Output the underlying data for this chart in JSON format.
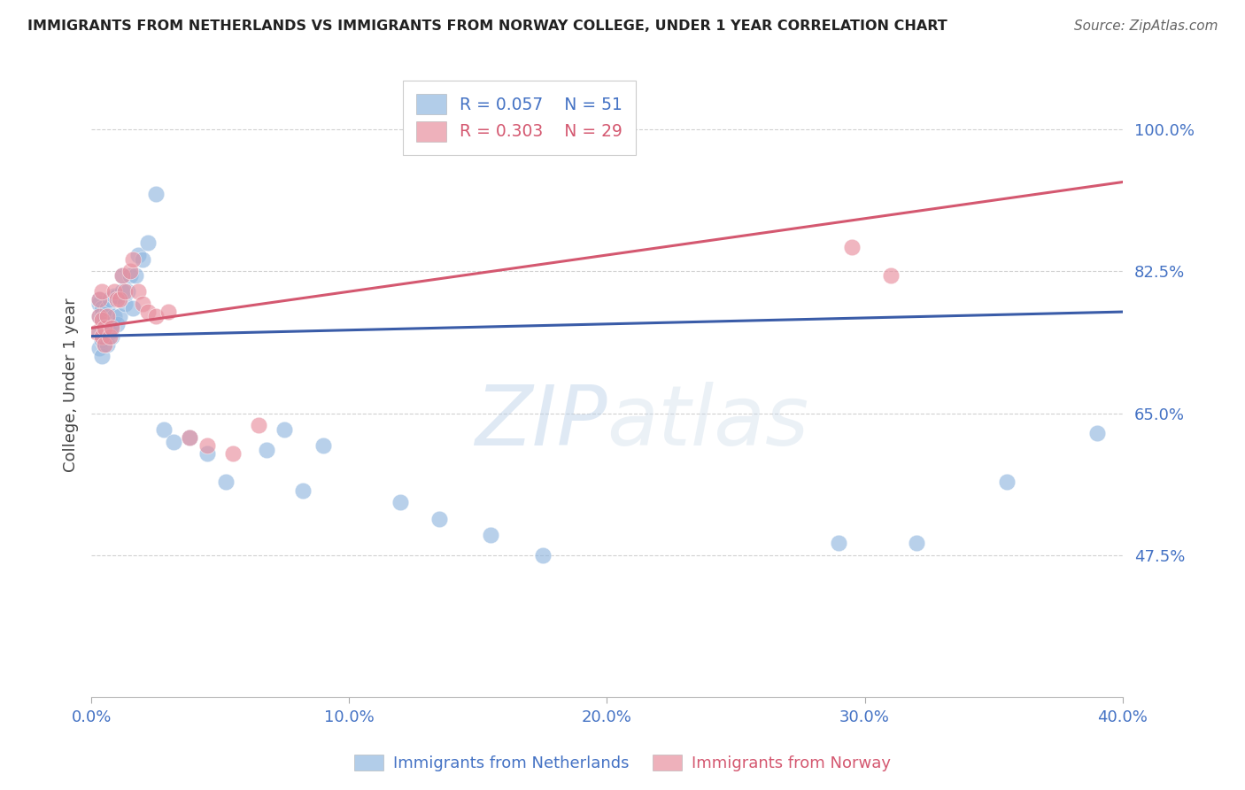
{
  "title": "IMMIGRANTS FROM NETHERLANDS VS IMMIGRANTS FROM NORWAY COLLEGE, UNDER 1 YEAR CORRELATION CHART",
  "source": "Source: ZipAtlas.com",
  "xlabel_ticks": [
    "0.0%",
    "10.0%",
    "20.0%",
    "30.0%",
    "40.0%"
  ],
  "xlabel_tick_vals": [
    0.0,
    0.1,
    0.2,
    0.3,
    0.4
  ],
  "ylabel_ticks": [
    "100.0%",
    "82.5%",
    "65.0%",
    "47.5%"
  ],
  "ylabel_tick_vals": [
    1.0,
    0.825,
    0.65,
    0.475
  ],
  "xmin": 0.0,
  "xmax": 0.4,
  "ymin": 0.3,
  "ymax": 1.07,
  "ylabel": "College, Under 1 year",
  "legend_blue_r": "R = 0.057",
  "legend_blue_n": "N = 51",
  "legend_pink_r": "R = 0.303",
  "legend_pink_n": "N = 29",
  "blue_color": "#92b8e0",
  "pink_color": "#e8909f",
  "blue_line_color": "#3a5ca8",
  "pink_line_color": "#d45870",
  "watermark_zip": "ZIP",
  "watermark_atlas": "atlas",
  "blue_scatter_x": [
    0.003,
    0.003,
    0.003,
    0.003,
    0.003,
    0.004,
    0.004,
    0.004,
    0.004,
    0.005,
    0.005,
    0.005,
    0.006,
    0.006,
    0.007,
    0.007,
    0.008,
    0.008,
    0.009,
    0.009,
    0.01,
    0.01,
    0.011,
    0.012,
    0.012,
    0.013,
    0.014,
    0.015,
    0.016,
    0.017,
    0.018,
    0.02,
    0.022,
    0.025,
    0.028,
    0.032,
    0.038,
    0.045,
    0.052,
    0.068,
    0.075,
    0.082,
    0.09,
    0.12,
    0.135,
    0.155,
    0.175,
    0.29,
    0.32,
    0.355,
    0.39
  ],
  "blue_scatter_y": [
    0.73,
    0.75,
    0.77,
    0.785,
    0.79,
    0.72,
    0.74,
    0.775,
    0.78,
    0.735,
    0.755,
    0.77,
    0.735,
    0.78,
    0.75,
    0.79,
    0.745,
    0.76,
    0.77,
    0.795,
    0.76,
    0.795,
    0.77,
    0.8,
    0.82,
    0.785,
    0.8,
    0.82,
    0.78,
    0.82,
    0.845,
    0.84,
    0.86,
    0.92,
    0.63,
    0.615,
    0.62,
    0.6,
    0.565,
    0.605,
    0.63,
    0.555,
    0.61,
    0.54,
    0.52,
    0.5,
    0.475,
    0.49,
    0.49,
    0.565,
    0.625
  ],
  "pink_scatter_x": [
    0.002,
    0.003,
    0.003,
    0.004,
    0.004,
    0.004,
    0.005,
    0.005,
    0.006,
    0.007,
    0.008,
    0.009,
    0.01,
    0.011,
    0.012,
    0.013,
    0.015,
    0.016,
    0.018,
    0.02,
    0.022,
    0.025,
    0.03,
    0.038,
    0.045,
    0.055,
    0.065,
    0.295,
    0.31
  ],
  "pink_scatter_y": [
    0.75,
    0.77,
    0.79,
    0.745,
    0.765,
    0.8,
    0.735,
    0.755,
    0.77,
    0.745,
    0.755,
    0.8,
    0.79,
    0.79,
    0.82,
    0.8,
    0.825,
    0.84,
    0.8,
    0.785,
    0.775,
    0.77,
    0.775,
    0.62,
    0.61,
    0.6,
    0.635,
    0.855,
    0.82
  ],
  "blue_trendline_x": [
    0.0,
    0.4
  ],
  "blue_trendline_y": [
    0.745,
    0.775
  ],
  "pink_trendline_x": [
    0.0,
    0.4
  ],
  "pink_trendline_y": [
    0.755,
    0.935
  ]
}
